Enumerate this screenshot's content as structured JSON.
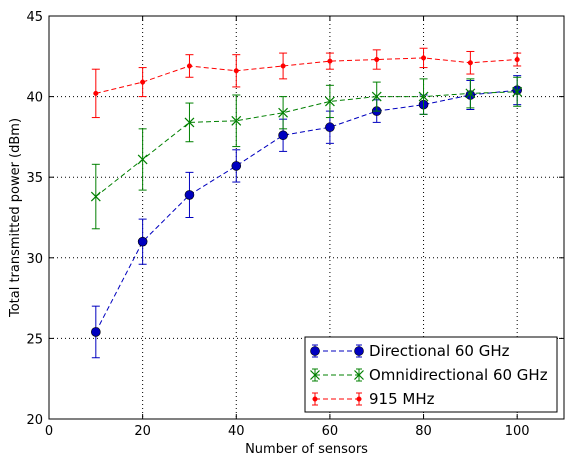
{
  "chart_data": {
    "type": "line",
    "title": "",
    "xlabel": "Number of sensors",
    "ylabel": "Total transmitted power (dBm)",
    "xlim": [
      0,
      110
    ],
    "ylim": [
      20,
      45
    ],
    "xticks": [
      0,
      20,
      40,
      60,
      80,
      100
    ],
    "yticks": [
      20,
      25,
      30,
      35,
      40,
      45
    ],
    "grid": true,
    "legend_position": "lower-right",
    "x": [
      10,
      20,
      30,
      40,
      50,
      60,
      70,
      80,
      90,
      100
    ],
    "series": [
      {
        "name": "Directional 60 GHz",
        "color": "#0000bf",
        "marker": "circle",
        "line_style": "dashed",
        "values": [
          25.4,
          31.0,
          33.9,
          35.7,
          37.6,
          38.1,
          39.1,
          39.5,
          40.1,
          40.4
        ],
        "err": [
          1.6,
          1.4,
          1.4,
          1.0,
          1.0,
          1.0,
          0.7,
          0.6,
          0.9,
          0.9
        ]
      },
      {
        "name": "Omnidirectional 60 GHz",
        "color": "#008000",
        "marker": "x",
        "line_style": "dashed",
        "values": [
          33.8,
          36.1,
          38.4,
          38.5,
          39.0,
          39.7,
          40.0,
          40.0,
          40.2,
          40.3
        ],
        "err": [
          2.0,
          1.9,
          1.2,
          1.6,
          1.0,
          1.0,
          0.9,
          1.1,
          0.9,
          0.9
        ]
      },
      {
        "name": "915 MHz",
        "color": "#ff0000",
        "marker": "dot",
        "line_style": "dashed",
        "values": [
          40.2,
          40.9,
          41.9,
          41.6,
          41.9,
          42.2,
          42.3,
          42.4,
          42.1,
          42.3
        ],
        "err": [
          1.5,
          0.9,
          0.7,
          1.0,
          0.8,
          0.5,
          0.6,
          0.6,
          0.7,
          0.4
        ]
      }
    ]
  }
}
